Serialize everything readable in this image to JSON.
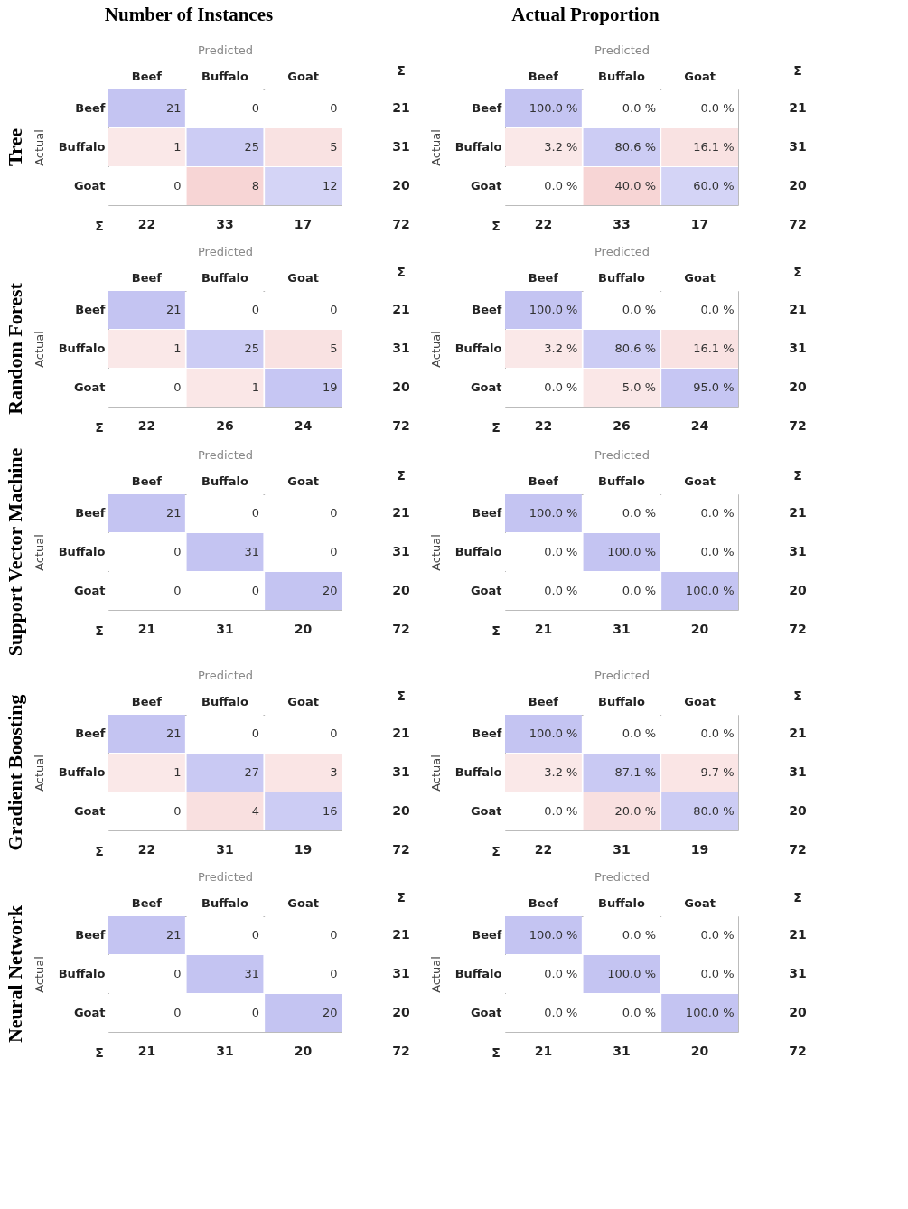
{
  "chart_data": [
    {
      "type": "heatmap",
      "title": "Tree",
      "subtitle": "Number of Instances",
      "xlabel": "Predicted",
      "ylabel": "Actual",
      "categories": [
        "Beef",
        "Buffalo",
        "Goat"
      ],
      "y_categories": [
        "Beef",
        "Buffalo",
        "Goat"
      ],
      "cells": [
        [
          21,
          0,
          0
        ],
        [
          1,
          25,
          5
        ],
        [
          0,
          8,
          12
        ]
      ],
      "data_labels": true,
      "y2_categories": [
        "21",
        "31",
        "20"
      ],
      "totals": [
        "22",
        "33",
        "17"
      ],
      "annotations": [
        "Σ",
        "Σ",
        "72"
      ]
    },
    {
      "type": "heatmap",
      "subtitle": "Actual Proportion",
      "xlabel": "Predicted",
      "ylabel": "Actual",
      "categories": [
        "Beef",
        "Buffalo",
        "Goat"
      ],
      "y_categories": [
        "Beef",
        "Buffalo",
        "Goat"
      ],
      "cells": [
        [
          100.0,
          0.0,
          0.0
        ],
        [
          3.2,
          80.6,
          16.1
        ],
        [
          0.0,
          40.0,
          60.0
        ]
      ],
      "cell_labels": [
        [
          "100.0 %",
          "0.0 %",
          "0.0 %"
        ],
        [
          "3.2 %",
          "80.6 %",
          "16.1 %"
        ],
        [
          "0.0 %",
          "40.0 %",
          "60.0 %"
        ]
      ],
      "y2_categories": [
        "21",
        "31",
        "20"
      ],
      "totals": [
        "22",
        "33",
        "17"
      ],
      "annotations": [
        "Σ",
        "Σ",
        "72"
      ]
    },
    {
      "type": "heatmap",
      "title": "Random Forest",
      "xlabel": "Predicted",
      "ylabel": "Actual",
      "categories": [
        "Beef",
        "Buffalo",
        "Goat"
      ],
      "y_categories": [
        "Beef",
        "Buffalo",
        "Goat"
      ],
      "cells": [
        [
          21,
          0,
          0
        ],
        [
          1,
          25,
          5
        ],
        [
          0,
          1,
          19
        ]
      ],
      "data_labels": true,
      "y2_categories": [
        "21",
        "31",
        "20"
      ],
      "totals": [
        "22",
        "26",
        "24"
      ],
      "annotations": [
        "Σ",
        "Σ",
        "72"
      ]
    },
    {
      "type": "heatmap",
      "xlabel": "Predicted",
      "ylabel": "Actual",
      "categories": [
        "Beef",
        "Buffalo",
        "Goat"
      ],
      "y_categories": [
        "Beef",
        "Buffalo",
        "Goat"
      ],
      "cells": [
        [
          100.0,
          0.0,
          0.0
        ],
        [
          3.2,
          80.6,
          16.1
        ],
        [
          0.0,
          5.0,
          95.0
        ]
      ],
      "cell_labels": [
        [
          "100.0 %",
          "0.0 %",
          "0.0 %"
        ],
        [
          "3.2 %",
          "80.6 %",
          "16.1 %"
        ],
        [
          "0.0 %",
          "5.0 %",
          "95.0 %"
        ]
      ],
      "y2_categories": [
        "21",
        "31",
        "20"
      ],
      "totals": [
        "22",
        "26",
        "24"
      ],
      "annotations": [
        "Σ",
        "Σ",
        "72"
      ]
    },
    {
      "type": "heatmap",
      "title": "Support Vector Machine",
      "xlabel": "Predicted",
      "ylabel": "Actual",
      "categories": [
        "Beef",
        "Buffalo",
        "Goat"
      ],
      "y_categories": [
        "Beef",
        "Buffalo",
        "Goat"
      ],
      "cells": [
        [
          21,
          0,
          0
        ],
        [
          0,
          31,
          0
        ],
        [
          0,
          0,
          20
        ]
      ],
      "data_labels": true,
      "y2_categories": [
        "21",
        "31",
        "20"
      ],
      "totals": [
        "21",
        "31",
        "20"
      ],
      "annotations": [
        "Σ",
        "Σ",
        "72"
      ]
    },
    {
      "type": "heatmap",
      "xlabel": "Predicted",
      "ylabel": "Actual",
      "categories": [
        "Beef",
        "Buffalo",
        "Goat"
      ],
      "y_categories": [
        "Beef",
        "Buffalo",
        "Goat"
      ],
      "cells": [
        [
          100.0,
          0.0,
          0.0
        ],
        [
          0.0,
          100.0,
          0.0
        ],
        [
          0.0,
          0.0,
          100.0
        ]
      ],
      "cell_labels": [
        [
          "100.0 %",
          "0.0 %",
          "0.0 %"
        ],
        [
          "0.0 %",
          "100.0 %",
          "0.0 %"
        ],
        [
          "0.0 %",
          "0.0 %",
          "100.0 %"
        ]
      ],
      "y2_categories": [
        "21",
        "31",
        "20"
      ],
      "totals": [
        "21",
        "31",
        "20"
      ],
      "annotations": [
        "Σ",
        "Σ",
        "72"
      ]
    },
    {
      "type": "heatmap",
      "title": "Gradient Boosting",
      "xlabel": "Predicted",
      "ylabel": "Actual",
      "categories": [
        "Beef",
        "Buffalo",
        "Goat"
      ],
      "y_categories": [
        "Beef",
        "Buffalo",
        "Goat"
      ],
      "cells": [
        [
          21,
          0,
          0
        ],
        [
          1,
          27,
          3
        ],
        [
          0,
          4,
          16
        ]
      ],
      "data_labels": true,
      "y2_categories": [
        "21",
        "31",
        "20"
      ],
      "totals": [
        "22",
        "31",
        "19"
      ],
      "annotations": [
        "Σ",
        "Σ",
        "72"
      ]
    },
    {
      "type": "heatmap",
      "xlabel": "Predicted",
      "ylabel": "Actual",
      "categories": [
        "Beef",
        "Buffalo",
        "Goat"
      ],
      "y_categories": [
        "Beef",
        "Buffalo",
        "Goat"
      ],
      "cells": [
        [
          100.0,
          0.0,
          0.0
        ],
        [
          3.2,
          87.1,
          9.7
        ],
        [
          0.0,
          20.0,
          80.0
        ]
      ],
      "cell_labels": [
        [
          "100.0 %",
          "0.0 %",
          "0.0 %"
        ],
        [
          "3.2 %",
          "87.1 %",
          "9.7 %"
        ],
        [
          "0.0 %",
          "20.0 %",
          "80.0 %"
        ]
      ],
      "y2_categories": [
        "21",
        "31",
        "20"
      ],
      "totals": [
        "22",
        "31",
        "19"
      ],
      "annotations": [
        "Σ",
        "Σ",
        "72"
      ]
    },
    {
      "type": "heatmap",
      "title": "Neural Network",
      "xlabel": "Predicted",
      "ylabel": "Actual",
      "categories": [
        "Beef",
        "Buffalo",
        "Goat"
      ],
      "y_categories": [
        "Beef",
        "Buffalo",
        "Goat"
      ],
      "cells": [
        [
          21,
          0,
          0
        ],
        [
          0,
          31,
          0
        ],
        [
          0,
          0,
          20
        ]
      ],
      "data_labels": true,
      "y2_categories": [
        "21",
        "31",
        "20"
      ],
      "totals": [
        "21",
        "31",
        "20"
      ],
      "annotations": [
        "Σ",
        "Σ",
        "72"
      ]
    },
    {
      "type": "heatmap",
      "xlabel": "Predicted",
      "ylabel": "Actual",
      "categories": [
        "Beef",
        "Buffalo",
        "Goat"
      ],
      "y_categories": [
        "Beef",
        "Buffalo",
        "Goat"
      ],
      "cells": [
        [
          100.0,
          0.0,
          0.0
        ],
        [
          0.0,
          100.0,
          0.0
        ],
        [
          0.0,
          0.0,
          100.0
        ]
      ],
      "cell_labels": [
        [
          "100.0 %",
          "0.0 %",
          "0.0 %"
        ],
        [
          "0.0 %",
          "100.0 %",
          "0.0 %"
        ],
        [
          "0.0 %",
          "0.0 %",
          "100.0 %"
        ]
      ],
      "y2_categories": [
        "21",
        "31",
        "20"
      ],
      "totals": [
        "21",
        "31",
        "20"
      ],
      "annotations": [
        "Σ",
        "Σ",
        "72"
      ]
    }
  ]
}
